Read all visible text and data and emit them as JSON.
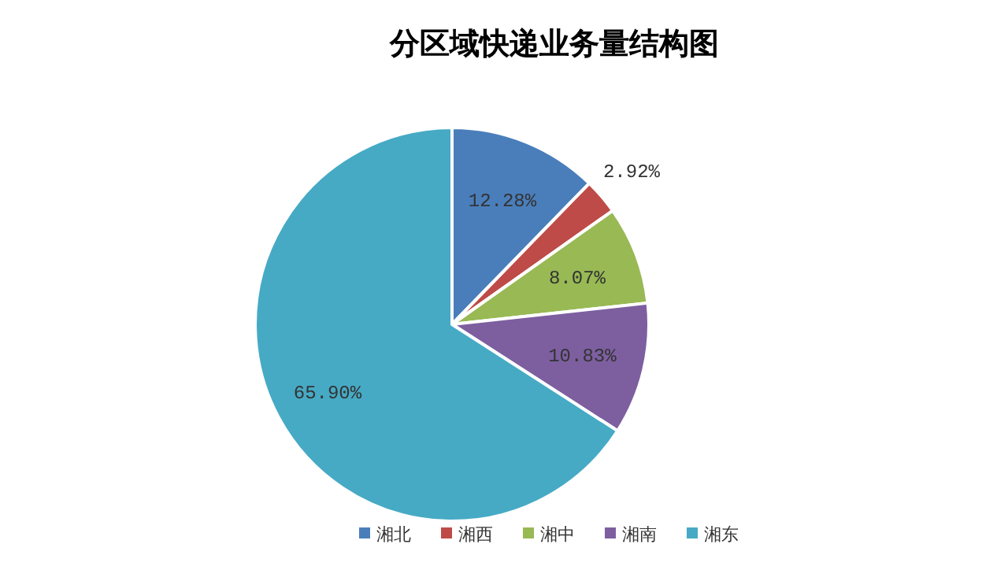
{
  "chart_data": {
    "type": "pie",
    "title": "分区域快递业务量结构图",
    "categories": [
      "湘北",
      "湘西",
      "湘中",
      "湘南",
      "湘东"
    ],
    "values": [
      12.28,
      2.92,
      8.07,
      10.83,
      65.9
    ],
    "value_labels": [
      "12.28%",
      "2.92%",
      "8.07%",
      "10.83%",
      "65.90%"
    ],
    "colors": [
      "#4a7ebb",
      "#be4b48",
      "#98b954",
      "#7d5fa0",
      "#46aac5"
    ],
    "legend": "bottom"
  }
}
